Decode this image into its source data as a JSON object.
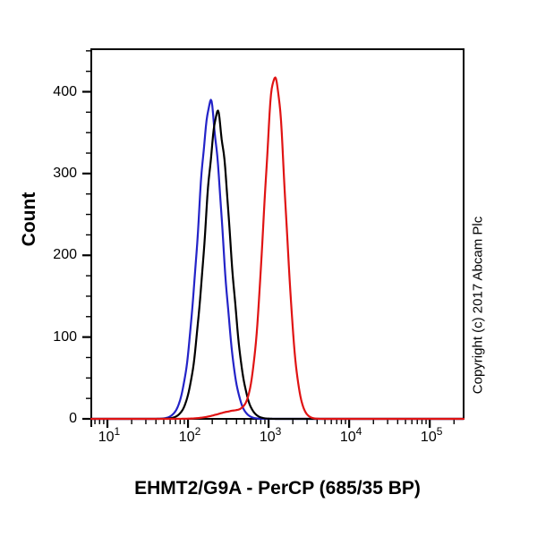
{
  "figure": {
    "y_axis": {
      "title": "Count",
      "tick_values": [
        0,
        100,
        200,
        300,
        400
      ],
      "tick_labels": [
        "0",
        "100",
        "200",
        "300",
        "400"
      ],
      "minor_step": 25,
      "max": 452
    },
    "x_axis": {
      "title": "EHMT2/G9A - PerCP (685/35 BP)",
      "scale": "log10",
      "tick_base": "10",
      "tick_exponents": [
        1,
        2,
        3,
        4,
        5
      ],
      "log_min": 0.8,
      "log_max": 5.42
    },
    "copyright": "Copyright (c) 2017 Abcam Plc",
    "colors": {
      "background": "#ffffff",
      "frame": "#000000",
      "blue_curve": "#2323c8",
      "black_curve": "#000000",
      "red_curve": "#e01313"
    }
  },
  "chart_data": {
    "type": "line",
    "subtype": "flow-cytometry-histogram",
    "title": "",
    "xlabel": "EHMT2/G9A - PerCP (685/35 BP)",
    "ylabel": "Count",
    "x_scale": "log10",
    "xlim": [
      6.3,
      263000
    ],
    "xlim_log10": [
      0.8,
      5.42
    ],
    "ylim": [
      0,
      452
    ],
    "y_major_ticks": [
      0,
      100,
      200,
      300,
      400
    ],
    "x_major_ticks": [
      10,
      100,
      1000,
      10000,
      100000
    ],
    "grid": "off",
    "legend": "none",
    "series": [
      {
        "name": "blue-histogram",
        "color": "#2323c8",
        "peak_x": 190,
        "peak_count": 385,
        "mean_log10": 2.275,
        "sigma_log10": 0.15,
        "shape_exponent": 1.9,
        "noise": 0.02
      },
      {
        "name": "black-histogram",
        "color": "#000000",
        "peak_x": 232,
        "peak_count": 372,
        "mean_log10": 2.365,
        "sigma_log10": 0.155,
        "shape_exponent": 1.9,
        "noise": 0.02
      },
      {
        "name": "red-histogram",
        "color": "#e01313",
        "peak_x": 1200,
        "peak_count": 418,
        "mean_log10": 3.08,
        "sigma_log10": 0.135,
        "shape_exponent": 2.0,
        "noise": 0.015,
        "left_shoulder": {
          "peak_count": 10,
          "mean_log10": 2.6,
          "sigma_log10": 0.22
        }
      }
    ]
  }
}
